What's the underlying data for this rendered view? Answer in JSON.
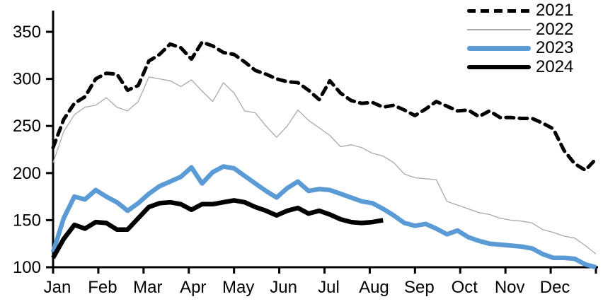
{
  "chart_data": {
    "type": "line",
    "title": "",
    "x_axis": {
      "tick_labels": [
        "Jan",
        "Feb",
        "Mar",
        "Apr",
        "May",
        "Jun",
        "Jul",
        "Aug",
        "Sep",
        "Oct",
        "Nov",
        "Dec"
      ],
      "points_per_series": 52,
      "unit": "weekly observations across one year"
    },
    "y_axis": {
      "ticks": [
        100,
        150,
        200,
        250,
        300,
        350
      ],
      "range": [
        100,
        350
      ]
    },
    "grid": false,
    "legend": {
      "position": "top-right",
      "entries": [
        "2021",
        "2022",
        "2023",
        "2024"
      ]
    },
    "colors": {
      "blue": "#5b9bd5",
      "gray": "#a9a9a9",
      "black": "#000000"
    },
    "series": [
      {
        "name": "2021",
        "style": "dashed",
        "color": "#000000",
        "stroke_width": 5,
        "values": [
          227,
          257,
          274,
          281,
          300,
          306,
          305,
          288,
          293,
          319,
          326,
          337,
          333,
          321,
          339,
          335,
          328,
          326,
          318,
          309,
          305,
          300,
          297,
          296,
          288,
          278,
          298,
          285,
          277,
          274,
          275,
          270,
          272,
          267,
          261,
          268,
          276,
          271,
          266,
          267,
          260,
          266,
          259,
          259,
          258,
          258,
          253,
          247,
          224,
          210,
          203,
          215
        ]
      },
      {
        "name": "2022",
        "style": "solid",
        "color": "#a9a9a9",
        "stroke_width": 1.3,
        "values": [
          211,
          244,
          262,
          270,
          272,
          280,
          270,
          266,
          276,
          302,
          300,
          298,
          292,
          299,
          287,
          276,
          296,
          285,
          266,
          264,
          250,
          238,
          250,
          267,
          256,
          248,
          240,
          228,
          230,
          227,
          221,
          218,
          211,
          199,
          195,
          194,
          193,
          170,
          166,
          162,
          158,
          156,
          152,
          150,
          149,
          147,
          140,
          137,
          133,
          131,
          123,
          114
        ]
      },
      {
        "name": "2023",
        "style": "solid",
        "color": "#5b9bd5",
        "stroke_width": 6.5,
        "values": [
          116,
          152,
          175,
          172,
          182,
          175,
          169,
          160,
          168,
          178,
          186,
          191,
          196,
          206,
          189,
          201,
          207,
          205,
          197,
          189,
          181,
          174,
          184,
          191,
          181,
          183,
          182,
          178,
          174,
          170,
          168,
          162,
          155,
          147,
          144,
          146,
          141,
          135,
          139,
          132,
          128,
          125,
          124,
          123,
          122,
          120,
          114,
          110,
          110,
          109,
          103,
          100
        ]
      },
      {
        "name": "2024",
        "style": "solid",
        "color": "#000000",
        "stroke_width": 6.5,
        "values": [
          110,
          130,
          145,
          141,
          148,
          147,
          140,
          140,
          152,
          164,
          168,
          169,
          167,
          161,
          167,
          167,
          169,
          171,
          169,
          164,
          160,
          155,
          160,
          163,
          157,
          160,
          156,
          151,
          148,
          147,
          148,
          150
        ]
      }
    ]
  }
}
